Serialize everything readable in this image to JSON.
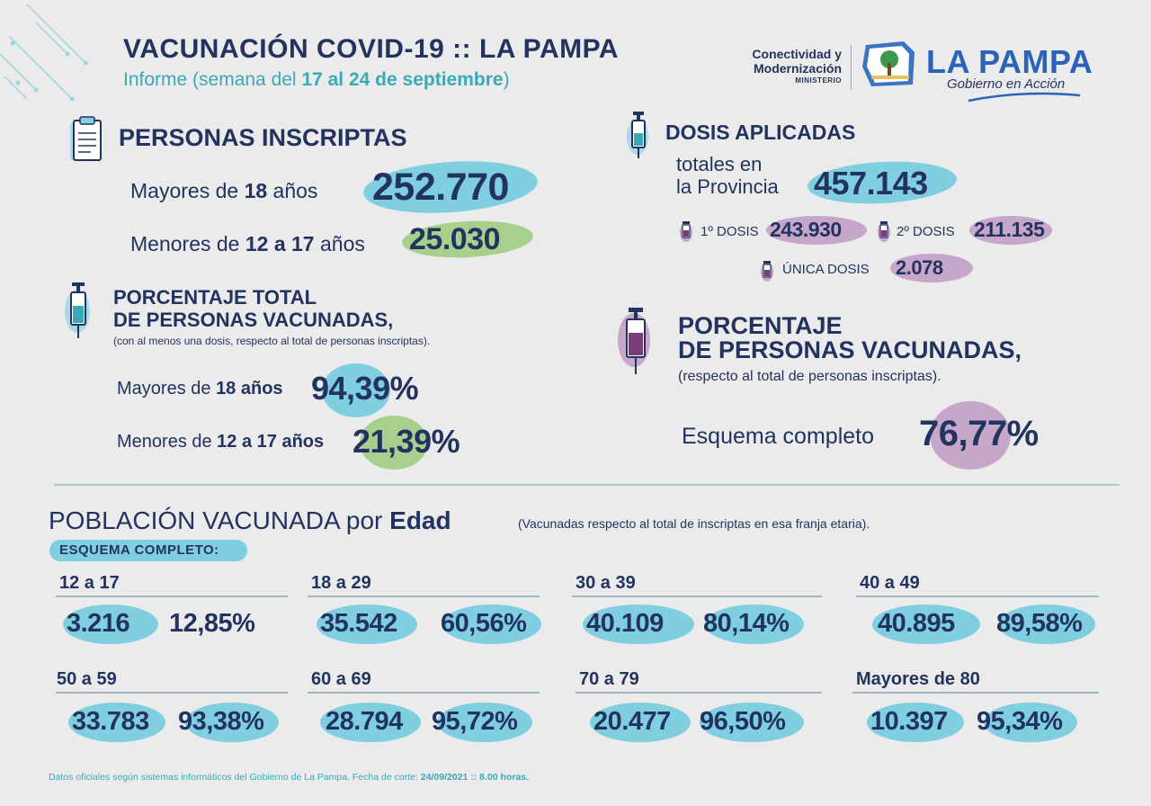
{
  "header": {
    "title": "VACUNACIÓN COVID-19 :: LA PAMPA",
    "subtitle_prefix": "Informe (semana del ",
    "subtitle_dates": "17 al 24 de septiembre",
    "subtitle_suffix": ")"
  },
  "logo": {
    "ministry_line1": "Conectividad y",
    "ministry_line2": "Modernización",
    "ministry_line3": "MINISTERIO",
    "name": "LA PAMPA",
    "tagline": "Gobierno en Acción"
  },
  "inscriptas": {
    "title": "PERSONAS INSCRIPTAS",
    "adults_prefix": "Mayores de ",
    "adults_age": "18",
    "adults_suffix": " años",
    "adults_value": "252.770",
    "minors_prefix": "Menores de ",
    "minors_age": "12 a 17",
    "minors_suffix": " años",
    "minors_value": "25.030"
  },
  "dosis": {
    "title": "DOSIS APLICADAS",
    "totals_line1": "totales en",
    "totals_line2": "la Provincia",
    "total_value": "457.143",
    "first_label": "1º DOSIS",
    "first_value": "243.930",
    "second_label": "2º DOSIS",
    "second_value": "211.135",
    "single_label": "ÚNICA DOSIS",
    "single_value": "2.078"
  },
  "porcentaje_total": {
    "title_line1": "PORCENTAJE TOTAL",
    "title_line2": "DE PERSONAS VACUNADAS,",
    "note": "(con al menos una dosis, respecto al total de personas inscriptas).",
    "adults_prefix": "Mayores de ",
    "adults_age": "18 años",
    "adults_value": "94,39%",
    "minors_prefix": "Menores de ",
    "minors_age": "12 a 17 años",
    "minors_value": "21,39%"
  },
  "porcentaje_completo": {
    "title_line1": "PORCENTAJE",
    "title_line2": "DE PERSONAS VACUNADAS,",
    "note": "(respecto al total de personas inscriptas).",
    "label": "Esquema completo",
    "value": "76,77%"
  },
  "poblacion": {
    "title_prefix": "POBLACIÓN VACUNADA por ",
    "title_bold": "Edad",
    "note": "(Vacunadas respecto al total de inscriptas en esa franja etaria).",
    "badge": "ESQUEMA COMPLETO:",
    "groups": [
      {
        "range": "12 a 17",
        "count": "3.216",
        "percent": "12,85%"
      },
      {
        "range": "18 a 29",
        "count": "35.542",
        "percent": "60,56%"
      },
      {
        "range": "30 a 39",
        "count": "40.109",
        "percent": "80,14%"
      },
      {
        "range": "40 a 49",
        "count": "40.895",
        "percent": "89,58%"
      },
      {
        "range": "50 a 59",
        "count": "33.783",
        "percent": "93,38%"
      },
      {
        "range": "60 a 69",
        "count": "28.794",
        "percent": "95,72%"
      },
      {
        "range": "70 a 79",
        "count": "20.477",
        "percent": "96,50%"
      },
      {
        "range": "Mayores de 80",
        "count": "10.397",
        "percent": "95,34%"
      }
    ]
  },
  "footer": {
    "text": "Datos oficiales según sistemas informáticos del Gobierno de La Pampa. Fecha de corte: ",
    "date": "24/09/2021 :: 8.00 horas."
  },
  "colors": {
    "navy": "#23335f",
    "teal": "#3aa9b8",
    "green_blob": "#a8d08d",
    "blue_blob": "#7fcfe0",
    "purple_blob": "#c7a7c9"
  }
}
